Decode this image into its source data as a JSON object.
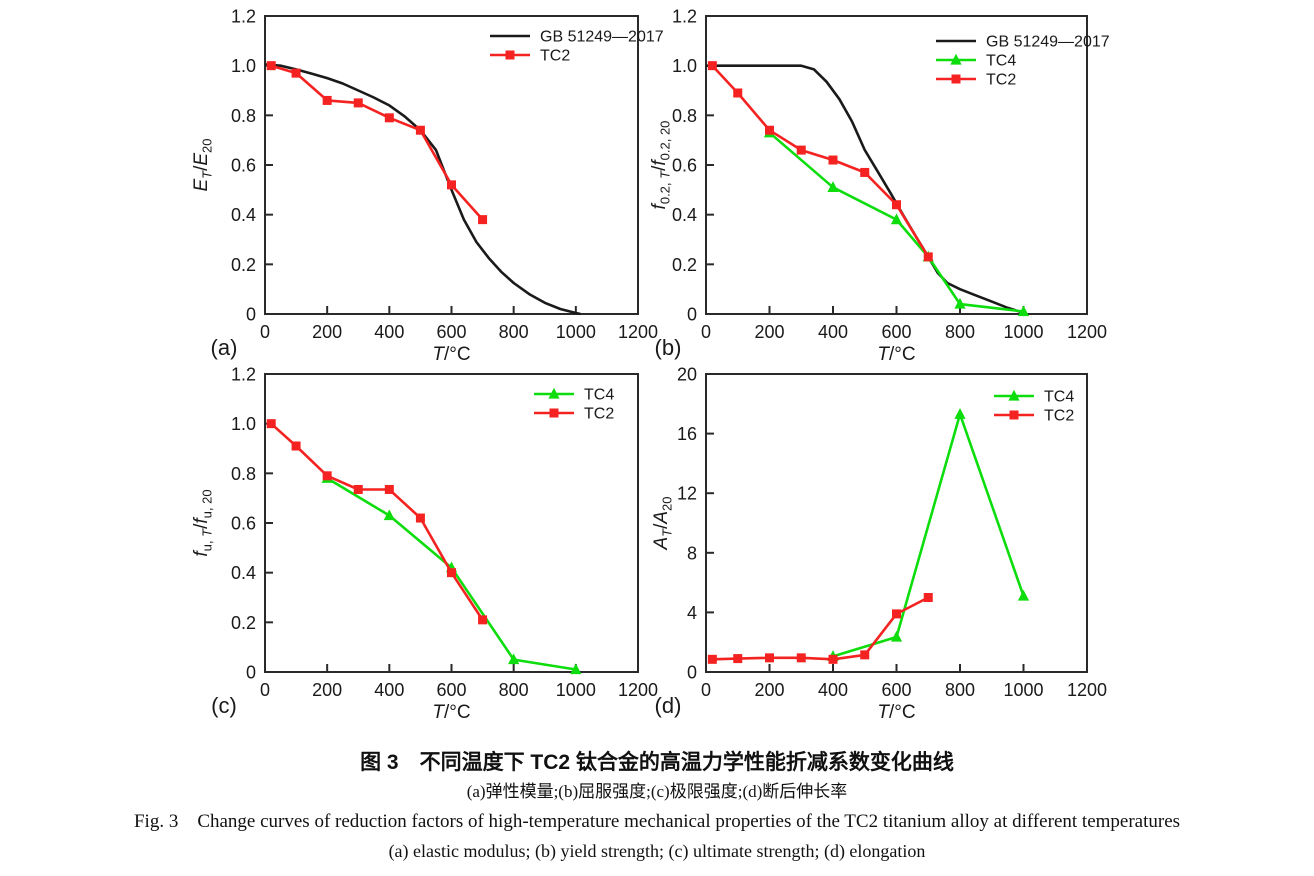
{
  "figure": {
    "caption_zh_title": "图 3　不同温度下 TC2 钛合金的高温力学性能折减系数变化曲线",
    "caption_zh_sub": "(a)弹性模量;(b)屈服强度;(c)极限强度;(d)断后伸长率",
    "caption_en_title": "Fig. 3　Change curves of reduction factors of high-temperature mechanical properties of the TC2 titanium alloy at different temperatures",
    "caption_en_sub": "(a) elastic modulus; (b) yield strength; (c) ultimate strength; (d) elongation"
  },
  "colors": {
    "gb_standard": "#1a1a1a",
    "tc4": "#0ddd0d",
    "tc2": "#f42321",
    "axis": "#2a2a2a",
    "text": "#1a1a1a"
  },
  "chart_data": [
    {
      "id": "a",
      "type": "line",
      "panel_label": "(a)",
      "xlabel": "T/°C",
      "ylabel": "E_T/E_20",
      "xlabel_parts": [
        {
          "t": "T",
          "i": 1
        },
        {
          "t": "/°C"
        }
      ],
      "ylabel_parts": [
        {
          "t": "E",
          "i": 1
        },
        {
          "t": "T",
          "i": 1,
          "s": 1
        },
        {
          "t": "/"
        },
        {
          "t": "E",
          "i": 1
        },
        {
          "t": "20",
          "s": 1
        }
      ],
      "xlim": [
        0,
        1200
      ],
      "ylim": [
        0,
        1.2
      ],
      "xtick_values": [
        0,
        200,
        400,
        600,
        800,
        1000,
        1200
      ],
      "xtick_labels": [
        "0",
        "200",
        "400",
        "600",
        "800",
        "1000",
        "1200"
      ],
      "ytick_values": [
        0,
        0.2,
        0.4,
        0.6,
        0.8,
        1.0,
        1.2
      ],
      "ytick_labels": [
        "0",
        "0.2",
        "0.4",
        "0.6",
        "0.8",
        "1.0",
        "1.2"
      ],
      "grid": false,
      "legend_position": "top-right",
      "series": [
        {
          "name": "GB 51249—2017",
          "color_key": "gb_standard",
          "marker": "none",
          "x": [
            0,
            50,
            100,
            150,
            200,
            250,
            300,
            350,
            400,
            450,
            500,
            550,
            600,
            640,
            680,
            720,
            760,
            800,
            850,
            900,
            950,
            1000,
            1015
          ],
          "y": [
            1.005,
            1.0,
            0.985,
            0.968,
            0.95,
            0.928,
            0.9,
            0.872,
            0.84,
            0.795,
            0.74,
            0.66,
            0.5,
            0.38,
            0.29,
            0.225,
            0.17,
            0.125,
            0.08,
            0.045,
            0.02,
            0.004,
            0.0
          ]
        },
        {
          "name": "TC2",
          "color_key": "tc2",
          "marker": "square",
          "x": [
            20,
            100,
            200,
            300,
            400,
            500,
            600,
            700
          ],
          "y": [
            1.0,
            0.97,
            0.86,
            0.85,
            0.79,
            0.74,
            0.52,
            0.38
          ]
        }
      ]
    },
    {
      "id": "b",
      "type": "line",
      "panel_label": "(b)",
      "xlabel": "T/°C",
      "ylabel": "f_0.2,T/f_0.2,20",
      "xlabel_parts": [
        {
          "t": "T",
          "i": 1
        },
        {
          "t": "/°C"
        }
      ],
      "ylabel_parts": [
        {
          "t": "f",
          "i": 1
        },
        {
          "t": "0.2, ",
          "s": 1
        },
        {
          "t": "T",
          "i": 1,
          "s": 1
        },
        {
          "t": "/"
        },
        {
          "t": "f",
          "i": 1
        },
        {
          "t": "0.2, 20",
          "s": 1
        }
      ],
      "xlim": [
        0,
        1200
      ],
      "ylim": [
        0,
        1.2
      ],
      "xtick_values": [
        0,
        200,
        400,
        600,
        800,
        1000,
        1200
      ],
      "xtick_labels": [
        "0",
        "200",
        "400",
        "600",
        "800",
        "1000",
        "1200"
      ],
      "ytick_values": [
        0,
        0.2,
        0.4,
        0.6,
        0.8,
        1.0,
        1.2
      ],
      "ytick_labels": [
        "0",
        "0.2",
        "0.4",
        "0.6",
        "0.8",
        "1.0",
        "1.2"
      ],
      "grid": false,
      "legend_position": "top-right",
      "series": [
        {
          "name": "GB 51249—2017",
          "color_key": "gb_standard",
          "marker": "none",
          "x": [
            0,
            100,
            200,
            300,
            340,
            380,
            420,
            460,
            500,
            540,
            580,
            620,
            660,
            700,
            730,
            760,
            800,
            850,
            900,
            950,
            1000
          ],
          "y": [
            1.0,
            1.0,
            1.0,
            1.0,
            0.985,
            0.935,
            0.865,
            0.775,
            0.66,
            0.575,
            0.49,
            0.4,
            0.315,
            0.23,
            0.165,
            0.125,
            0.1,
            0.075,
            0.05,
            0.025,
            0.005
          ]
        },
        {
          "name": "TC4",
          "color_key": "tc4",
          "marker": "triangle",
          "x": [
            200,
            400,
            600,
            700,
            800,
            1000
          ],
          "y": [
            0.73,
            0.51,
            0.38,
            0.23,
            0.04,
            0.01
          ]
        },
        {
          "name": "TC2",
          "color_key": "tc2",
          "marker": "square",
          "x": [
            20,
            100,
            200,
            300,
            400,
            500,
            600,
            700
          ],
          "y": [
            1.0,
            0.89,
            0.74,
            0.66,
            0.62,
            0.57,
            0.44,
            0.23
          ]
        }
      ]
    },
    {
      "id": "c",
      "type": "line",
      "panel_label": "(c)",
      "xlabel": "T/°C",
      "ylabel": "f_u,T/f_u,20",
      "xlabel_parts": [
        {
          "t": "T",
          "i": 1
        },
        {
          "t": "/°C"
        }
      ],
      "ylabel_parts": [
        {
          "t": "f",
          "i": 1
        },
        {
          "t": "u, ",
          "s": 1
        },
        {
          "t": "T",
          "i": 1,
          "s": 1
        },
        {
          "t": "/"
        },
        {
          "t": "f",
          "i": 1
        },
        {
          "t": "u, 20",
          "s": 1
        }
      ],
      "xlim": [
        0,
        1200
      ],
      "ylim": [
        0,
        1.2
      ],
      "xtick_values": [
        0,
        200,
        400,
        600,
        800,
        1000,
        1200
      ],
      "xtick_labels": [
        "0",
        "200",
        "400",
        "600",
        "800",
        "1000",
        "1200"
      ],
      "ytick_values": [
        0,
        0.2,
        0.4,
        0.6,
        0.8,
        1.0,
        1.2
      ],
      "ytick_labels": [
        "0",
        "0.2",
        "0.4",
        "0.6",
        "0.8",
        "1.0",
        "1.2"
      ],
      "grid": false,
      "legend_position": "top-right",
      "series": [
        {
          "name": "TC4",
          "color_key": "tc4",
          "marker": "triangle",
          "x": [
            200,
            400,
            600,
            800,
            1000
          ],
          "y": [
            0.78,
            0.63,
            0.42,
            0.05,
            0.01
          ]
        },
        {
          "name": "TC2",
          "color_key": "tc2",
          "marker": "square",
          "x": [
            20,
            100,
            200,
            300,
            400,
            500,
            600,
            700
          ],
          "y": [
            1.0,
            0.91,
            0.79,
            0.735,
            0.735,
            0.62,
            0.4,
            0.21
          ]
        }
      ]
    },
    {
      "id": "d",
      "type": "line",
      "panel_label": "(d)",
      "xlabel": "T/°C",
      "ylabel": "A_T/A_20",
      "xlabel_parts": [
        {
          "t": "T",
          "i": 1
        },
        {
          "t": "/°C"
        }
      ],
      "ylabel_parts": [
        {
          "t": "A",
          "i": 1
        },
        {
          "t": "T",
          "i": 1,
          "s": 1
        },
        {
          "t": "/"
        },
        {
          "t": "A",
          "i": 1
        },
        {
          "t": "20",
          "s": 1
        }
      ],
      "xlim": [
        0,
        1200
      ],
      "ylim": [
        0,
        20
      ],
      "xtick_values": [
        0,
        200,
        400,
        600,
        800,
        1000,
        1200
      ],
      "xtick_labels": [
        "0",
        "200",
        "400",
        "600",
        "800",
        "1000",
        "1200"
      ],
      "ytick_values": [
        0,
        4,
        8,
        12,
        16,
        20
      ],
      "ytick_labels": [
        "0",
        "4",
        "8",
        "12",
        "16",
        "20"
      ],
      "grid": false,
      "legend_position": "top-right",
      "series": [
        {
          "name": "TC4",
          "color_key": "tc4",
          "marker": "triangle",
          "x": [
            400,
            600,
            800,
            1000
          ],
          "y": [
            1.05,
            2.35,
            17.3,
            5.1
          ]
        },
        {
          "name": "TC2",
          "color_key": "tc2",
          "marker": "square",
          "x": [
            20,
            100,
            200,
            300,
            400,
            500,
            600,
            700
          ],
          "y": [
            0.85,
            0.9,
            0.95,
            0.95,
            0.85,
            1.15,
            3.9,
            5.0
          ]
        }
      ]
    }
  ]
}
